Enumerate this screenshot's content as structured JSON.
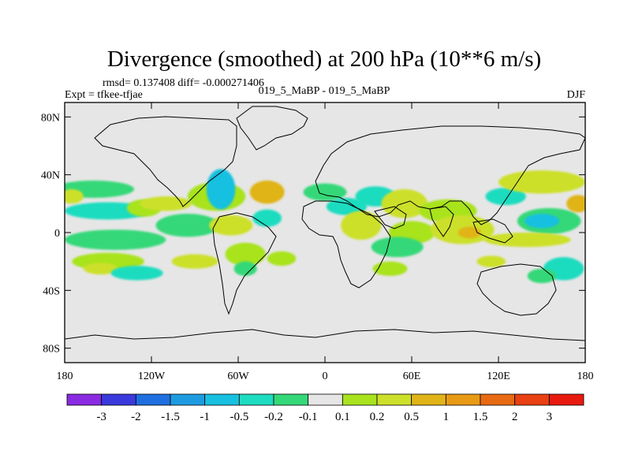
{
  "chart_data": {
    "type": "heatmap",
    "title": "Divergence (smoothed) at 200 hPa (10**6 m/s)",
    "stats_text": "rmsd= 0.137408 diff= -0.000271406",
    "left_label": "Expt = tfkee-tfjae",
    "center_label": "019_5_MaBP - 019_5_MaBP",
    "season": "DJF",
    "xlim": [
      -180,
      180
    ],
    "ylim": [
      -90,
      90
    ],
    "x_ticks": [
      {
        "value": -180,
        "label": "180"
      },
      {
        "value": -120,
        "label": "120W"
      },
      {
        "value": -60,
        "label": "60W"
      },
      {
        "value": 0,
        "label": "0"
      },
      {
        "value": 60,
        "label": "60E"
      },
      {
        "value": 120,
        "label": "120E"
      },
      {
        "value": 180,
        "label": "180"
      }
    ],
    "y_ticks": [
      {
        "value": 80,
        "label": "80N"
      },
      {
        "value": 40,
        "label": "40N"
      },
      {
        "value": 0,
        "label": "0"
      },
      {
        "value": -40,
        "label": "40S"
      },
      {
        "value": -80,
        "label": "80S"
      }
    ],
    "colorbar": {
      "labels": [
        "-3",
        "-2",
        "-1.5",
        "-1",
        "-0.5",
        "-0.2",
        "-0.1",
        "0.1",
        "0.2",
        "0.5",
        "1",
        "1.5",
        "2",
        "3"
      ],
      "colors": [
        "#8a2be2",
        "#3a3adc",
        "#1f6fe0",
        "#1e9be0",
        "#18c0e0",
        "#1edcc0",
        "#35d878",
        "#e6e6e6",
        "#a8e31e",
        "#cce02a",
        "#e0b419",
        "#e89a14",
        "#e86a12",
        "#e84012",
        "#e81a10"
      ]
    },
    "fields": [
      {
        "lon": -160,
        "lat": 30,
        "rx": 28,
        "ry": 6,
        "color": "#35d878"
      },
      {
        "lon": -175,
        "lat": 25,
        "rx": 8,
        "ry": 5,
        "color": "#cce02a"
      },
      {
        "lon": -150,
        "lat": 15,
        "rx": 30,
        "ry": 6,
        "color": "#1edcc0"
      },
      {
        "lon": -125,
        "lat": 17,
        "rx": 12,
        "ry": 6,
        "color": "#a8e31e"
      },
      {
        "lon": -145,
        "lat": -5,
        "rx": 35,
        "ry": 7,
        "color": "#35d878"
      },
      {
        "lon": -150,
        "lat": -20,
        "rx": 25,
        "ry": 6,
        "color": "#a8e31e"
      },
      {
        "lon": -155,
        "lat": -25,
        "rx": 12,
        "ry": 4,
        "color": "#cce02a"
      },
      {
        "lon": -130,
        "lat": -28,
        "rx": 18,
        "ry": 5,
        "color": "#1edcc0"
      },
      {
        "lon": -110,
        "lat": 20,
        "rx": 18,
        "ry": 5,
        "color": "#cce02a"
      },
      {
        "lon": -95,
        "lat": 5,
        "rx": 22,
        "ry": 8,
        "color": "#35d878"
      },
      {
        "lon": -75,
        "lat": 25,
        "rx": 20,
        "ry": 10,
        "color": "#a8e31e"
      },
      {
        "lon": -72,
        "lat": 30,
        "rx": 10,
        "ry": 14,
        "color": "#18c0e0"
      },
      {
        "lon": -65,
        "lat": 5,
        "rx": 15,
        "ry": 7,
        "color": "#cce02a"
      },
      {
        "lon": -55,
        "lat": -15,
        "rx": 14,
        "ry": 8,
        "color": "#a8e31e"
      },
      {
        "lon": -55,
        "lat": -25,
        "rx": 8,
        "ry": 5,
        "color": "#35d878"
      },
      {
        "lon": -90,
        "lat": -20,
        "rx": 16,
        "ry": 5,
        "color": "#cce02a"
      },
      {
        "lon": -40,
        "lat": 28,
        "rx": 12,
        "ry": 8,
        "color": "#e0b419"
      },
      {
        "lon": -40,
        "lat": 10,
        "rx": 10,
        "ry": 6,
        "color": "#1edcc0"
      },
      {
        "lon": -30,
        "lat": -18,
        "rx": 10,
        "ry": 5,
        "color": "#a8e31e"
      },
      {
        "lon": 0,
        "lat": 28,
        "rx": 15,
        "ry": 6,
        "color": "#35d878"
      },
      {
        "lon": 15,
        "lat": 18,
        "rx": 14,
        "ry": 6,
        "color": "#1edcc0"
      },
      {
        "lon": 25,
        "lat": 5,
        "rx": 14,
        "ry": 10,
        "color": "#cce02a"
      },
      {
        "lon": 35,
        "lat": 25,
        "rx": 14,
        "ry": 7,
        "color": "#1edcc0"
      },
      {
        "lon": 55,
        "lat": 20,
        "rx": 16,
        "ry": 10,
        "color": "#cce02a"
      },
      {
        "lon": 60,
        "lat": 0,
        "rx": 16,
        "ry": 8,
        "color": "#a8e31e"
      },
      {
        "lon": 50,
        "lat": -10,
        "rx": 18,
        "ry": 7,
        "color": "#35d878"
      },
      {
        "lon": 45,
        "lat": -25,
        "rx": 12,
        "ry": 5,
        "color": "#a8e31e"
      },
      {
        "lon": 85,
        "lat": 15,
        "rx": 20,
        "ry": 8,
        "color": "#a8e31e"
      },
      {
        "lon": 95,
        "lat": 2,
        "rx": 22,
        "ry": 10,
        "color": "#cce02a"
      },
      {
        "lon": 100,
        "lat": 0,
        "rx": 8,
        "ry": 4,
        "color": "#e0b419"
      },
      {
        "lon": 125,
        "lat": 25,
        "rx": 14,
        "ry": 6,
        "color": "#1edcc0"
      },
      {
        "lon": 150,
        "lat": 35,
        "rx": 30,
        "ry": 8,
        "color": "#cce02a"
      },
      {
        "lon": 155,
        "lat": 8,
        "rx": 22,
        "ry": 9,
        "color": "#35d878"
      },
      {
        "lon": 150,
        "lat": 8,
        "rx": 12,
        "ry": 5,
        "color": "#18c0e0"
      },
      {
        "lon": 140,
        "lat": -5,
        "rx": 30,
        "ry": 5,
        "color": "#cce02a"
      },
      {
        "lon": 165,
        "lat": -25,
        "rx": 14,
        "ry": 8,
        "color": "#1edcc0"
      },
      {
        "lon": 150,
        "lat": -30,
        "rx": 10,
        "ry": 5,
        "color": "#35d878"
      },
      {
        "lon": 115,
        "lat": -20,
        "rx": 10,
        "ry": 4,
        "color": "#cce02a"
      },
      {
        "lon": 175,
        "lat": 20,
        "rx": 8,
        "ry": 6,
        "color": "#e0b419"
      }
    ]
  }
}
